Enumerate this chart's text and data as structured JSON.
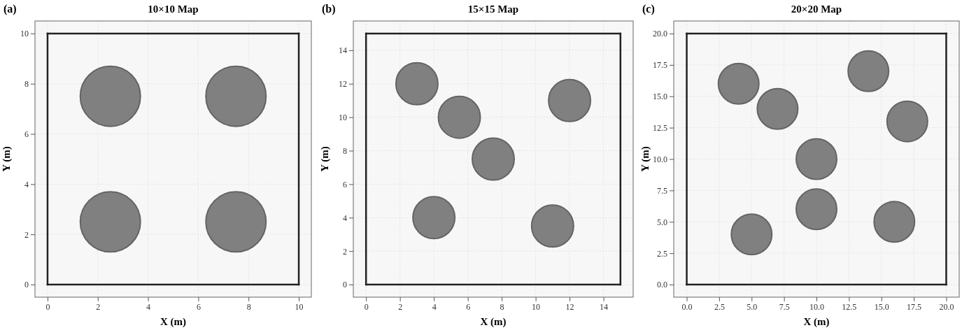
{
  "chart_data": [
    {
      "type": "bubble",
      "title": "10×10 Map",
      "xlabel": "X (m)",
      "ylabel": "Y (m)",
      "annotations": [
        "(a)"
      ],
      "xlim": [
        -0.5,
        10.5
      ],
      "xticks": [
        0,
        2,
        4,
        6,
        8,
        10
      ],
      "ylim": [
        -0.5,
        10.5
      ],
      "yticks": [
        0,
        2,
        4,
        6,
        8,
        10
      ],
      "grid": true,
      "series": [
        {
          "type": "line",
          "color": "#222222",
          "x": [
            0,
            10
          ],
          "values": [
            0,
            0
          ]
        },
        {
          "type": "line",
          "color": "#222222",
          "x": [
            10,
            10
          ],
          "values": [
            0,
            10
          ]
        },
        {
          "type": "line",
          "color": "#222222",
          "x": [
            10,
            0
          ],
          "values": [
            10,
            10
          ]
        },
        {
          "type": "line",
          "color": "#222222",
          "x": [
            0,
            0
          ],
          "values": [
            10,
            0
          ]
        },
        {
          "color": "#808080",
          "x": [
            2.5,
            7.5,
            2.5,
            7.5
          ],
          "values": [
            7.5,
            7.5,
            2.5,
            2.5
          ],
          "sizes": [
            1,
            1,
            1,
            1
          ]
        }
      ]
    },
    {
      "type": "bubble",
      "title": "15×15 Map",
      "xlabel": "X (m)",
      "ylabel": "Y (m)",
      "annotations": [
        "(b)"
      ],
      "xlim": [
        -0.75,
        15.75
      ],
      "xticks": [
        0,
        2,
        4,
        6,
        8,
        10,
        12,
        14
      ],
      "ylim": [
        -0.75,
        15.75
      ],
      "yticks": [
        0,
        2,
        4,
        6,
        8,
        10,
        12,
        14
      ],
      "grid": true,
      "series": [
        {
          "type": "line",
          "color": "#222222",
          "x": [
            0,
            15
          ],
          "values": [
            0,
            0
          ]
        },
        {
          "type": "line",
          "color": "#222222",
          "x": [
            15,
            15
          ],
          "values": [
            0,
            15
          ]
        },
        {
          "type": "line",
          "color": "#222222",
          "x": [
            15,
            0
          ],
          "values": [
            15,
            15
          ]
        },
        {
          "type": "line",
          "color": "#222222",
          "x": [
            0,
            0
          ],
          "values": [
            15,
            0
          ]
        },
        {
          "color": "#808080",
          "x": [
            3,
            5.5,
            12,
            7.5,
            4,
            11
          ],
          "values": [
            12,
            10,
            11,
            7.5,
            4,
            3.5
          ],
          "sizes": [
            1,
            1,
            1,
            1,
            1,
            1
          ]
        }
      ]
    },
    {
      "type": "bubble",
      "title": "20×20 Map",
      "xlabel": "X (m)",
      "ylabel": "Y (m)",
      "annotations": [
        "(c)"
      ],
      "xlim": [
        -1,
        21
      ],
      "xticks": [
        {
          "value": 0,
          "label": "0.0"
        },
        {
          "value": 2.5,
          "label": "2.5"
        },
        {
          "value": 5,
          "label": "5.0"
        },
        {
          "value": 7.5,
          "label": "7.5"
        },
        {
          "value": 10,
          "label": "10.0"
        },
        {
          "value": 12.5,
          "label": "12.5"
        },
        {
          "value": 15,
          "label": "15.0"
        },
        {
          "value": 17.5,
          "label": "17.5"
        },
        {
          "value": 20,
          "label": "20.0"
        }
      ],
      "ylim": [
        -1,
        21
      ],
      "yticks": [
        {
          "value": 0,
          "label": "0.0"
        },
        {
          "value": 2.5,
          "label": "2.5"
        },
        {
          "value": 5,
          "label": "5.0"
        },
        {
          "value": 7.5,
          "label": "7.5"
        },
        {
          "value": 10,
          "label": "10.0"
        },
        {
          "value": 12.5,
          "label": "12.5"
        },
        {
          "value": 15,
          "label": "15.0"
        },
        {
          "value": 17.5,
          "label": "17.5"
        },
        {
          "value": 20,
          "label": "20.0"
        }
      ],
      "grid": true,
      "series": [
        {
          "type": "line",
          "color": "#222222",
          "x": [
            0,
            20
          ],
          "values": [
            0,
            0
          ]
        },
        {
          "type": "line",
          "color": "#222222",
          "x": [
            20,
            20
          ],
          "values": [
            0,
            20
          ]
        },
        {
          "type": "line",
          "color": "#222222",
          "x": [
            20,
            0
          ],
          "values": [
            20,
            20
          ]
        },
        {
          "type": "line",
          "color": "#222222",
          "x": [
            0,
            0
          ],
          "values": [
            20,
            0
          ]
        },
        {
          "color": "#808080",
          "x": [
            4,
            7,
            14,
            17,
            10,
            10,
            5,
            16
          ],
          "values": [
            16,
            14,
            17,
            13,
            10,
            6,
            4,
            5
          ],
          "sizes": [
            1,
            1,
            1,
            1,
            1,
            1,
            1,
            1
          ]
        }
      ]
    }
  ]
}
